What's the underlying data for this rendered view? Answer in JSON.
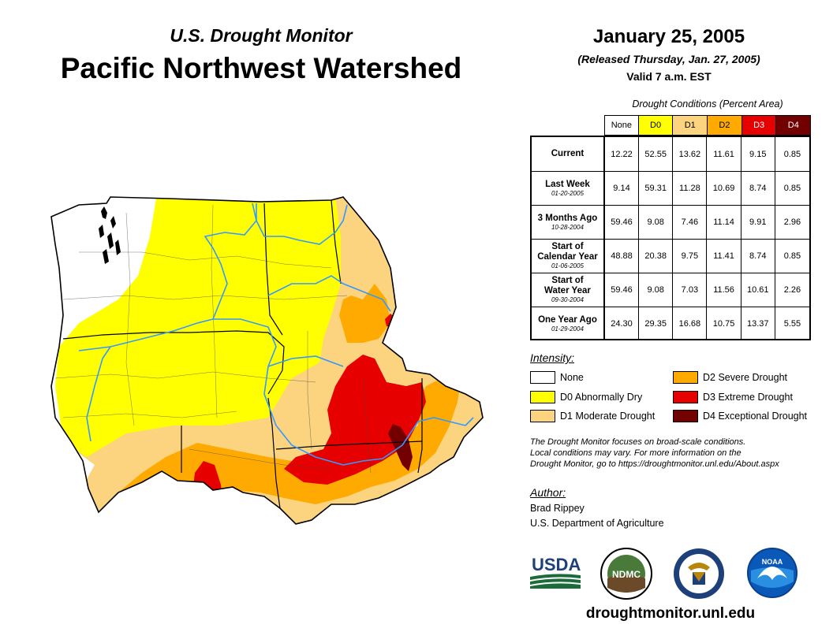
{
  "header": {
    "brand": "U.S. Drought Monitor",
    "region": "Pacific Northwest Watershed",
    "date": "January 25, 2005",
    "released": "(Released Thursday, Jan. 27, 2005)",
    "valid": "Valid 7 a.m. EST"
  },
  "table": {
    "caption": "Drought Conditions (Percent Area)",
    "columns": [
      "None",
      "D0",
      "D1",
      "D2",
      "D3",
      "D4"
    ],
    "rows": [
      {
        "label": "Current",
        "date": "",
        "values": [
          "12.22",
          "52.55",
          "13.62",
          "11.61",
          "9.15",
          "0.85"
        ]
      },
      {
        "label": "Last Week",
        "date": "01-20-2005",
        "values": [
          "9.14",
          "59.31",
          "11.28",
          "10.69",
          "8.74",
          "0.85"
        ]
      },
      {
        "label": "3 Months Ago",
        "date": "10-28-2004",
        "values": [
          "59.46",
          "9.08",
          "7.46",
          "11.14",
          "9.91",
          "2.96"
        ]
      },
      {
        "label": "Start of\nCalendar Year",
        "date": "01-06-2005",
        "values": [
          "48.88",
          "20.38",
          "9.75",
          "11.41",
          "8.74",
          "0.85"
        ]
      },
      {
        "label": "Start of\nWater Year",
        "date": "09-30-2004",
        "values": [
          "59.46",
          "9.08",
          "7.03",
          "11.56",
          "10.61",
          "2.26"
        ]
      },
      {
        "label": "One Year Ago",
        "date": "01-29-2004",
        "values": [
          "24.30",
          "29.35",
          "16.68",
          "10.75",
          "13.37",
          "5.55"
        ]
      }
    ]
  },
  "legend": {
    "title": "Intensity:",
    "items": [
      {
        "label": "None",
        "color": "#ffffff"
      },
      {
        "label": "D0 Abnormally Dry",
        "color": "#ffff00"
      },
      {
        "label": "D1 Moderate Drought",
        "color": "#fcd37f"
      },
      {
        "label": "D2 Severe Drought",
        "color": "#ffaa00"
      },
      {
        "label": "D3 Extreme Drought",
        "color": "#e60000"
      },
      {
        "label": "D4 Exceptional Drought",
        "color": "#730000"
      }
    ]
  },
  "note": {
    "line1": "The Drought Monitor focuses on broad-scale conditions.",
    "line2": "Local conditions may vary. For more information on the",
    "line3": "Drought Monitor, go to https://droughtmonitor.unl.edu/About.aspx"
  },
  "author": {
    "title": "Author:",
    "name": "Brad Rippey",
    "org": "U.S. Department of Agriculture"
  },
  "logos": {
    "usda": "USDA",
    "ndmc": "NDMC",
    "noaa": "NOAA"
  },
  "site_url": "droughtmonitor.unl.edu",
  "colors": {
    "none": "#ffffff",
    "d0": "#ffff00",
    "d1": "#fcd37f",
    "d2": "#ffaa00",
    "d3": "#e60000",
    "d4": "#730000",
    "river": "#3399ff"
  }
}
